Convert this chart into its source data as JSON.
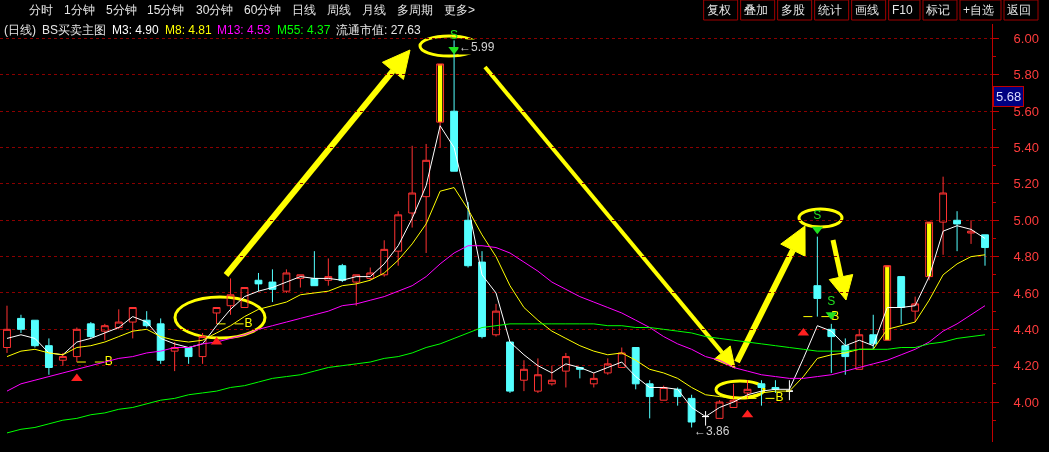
{
  "chart_data": [
    {
      "type": "other",
      "annotations": [
        "分时",
        "1分钟",
        "5分钟",
        "15分钟",
        "30分钟",
        "60分钟",
        "日线",
        "周线",
        "月线",
        "多周期",
        "更多>"
      ]
    },
    {
      "type": "other",
      "annotations": [
        "复权",
        "叠加",
        "多股",
        "统计",
        "画线",
        "F10",
        "标记",
        "+自选",
        "返回"
      ]
    },
    {
      "type": "candlestick",
      "title": "(日线)",
      "subtitle": "BS买卖主图",
      "categories": [
        null,
        null,
        null,
        null,
        null,
        null,
        null,
        null,
        null,
        null,
        null,
        null,
        null,
        null,
        null,
        null,
        null,
        null,
        null,
        null,
        null,
        null,
        null,
        null,
        null,
        null,
        null,
        null,
        null,
        null,
        null,
        null,
        null,
        null,
        null,
        null,
        null,
        null,
        null,
        null,
        null,
        null,
        null,
        null,
        null,
        null,
        null,
        null,
        null,
        null,
        null,
        null,
        null,
        null,
        null,
        null,
        null,
        null,
        null,
        null,
        null,
        null,
        null,
        null,
        null,
        null,
        null,
        null,
        null,
        null,
        null
      ],
      "ohlc": [
        [
          4.3,
          4.53,
          4.27,
          4.4
        ],
        [
          4.46,
          4.48,
          4.38,
          4.4
        ],
        [
          4.45,
          4.45,
          4.3,
          4.31
        ],
        [
          4.31,
          4.35,
          4.15,
          4.19
        ],
        [
          4.23,
          4.27,
          4.2,
          4.25
        ],
        [
          4.25,
          4.41,
          4.22,
          4.4
        ],
        [
          4.43,
          4.44,
          4.35,
          4.36
        ],
        [
          4.39,
          4.43,
          4.34,
          4.42
        ],
        [
          4.41,
          4.51,
          4.4,
          4.44
        ],
        [
          4.44,
          4.52,
          4.35,
          4.52
        ],
        [
          4.45,
          4.5,
          4.41,
          4.42
        ],
        [
          4.43,
          4.46,
          4.21,
          4.23
        ],
        [
          4.28,
          4.33,
          4.17,
          4.3
        ],
        [
          4.3,
          4.3,
          4.21,
          4.25
        ],
        [
          4.25,
          4.38,
          4.21,
          4.36
        ],
        [
          4.49,
          4.52,
          4.43,
          4.52
        ],
        [
          4.53,
          4.68,
          4.48,
          4.59
        ],
        [
          4.52,
          4.63,
          4.52,
          4.63
        ],
        [
          4.67,
          4.71,
          4.61,
          4.65
        ],
        [
          4.66,
          4.73,
          4.55,
          4.62
        ],
        [
          4.61,
          4.73,
          4.6,
          4.71
        ],
        [
          4.68,
          4.7,
          4.63,
          4.7
        ],
        [
          4.68,
          4.83,
          4.64,
          4.64
        ],
        [
          4.67,
          4.79,
          4.64,
          4.69
        ],
        [
          4.75,
          4.76,
          4.66,
          4.67
        ],
        [
          4.66,
          4.7,
          4.53,
          4.7
        ],
        [
          4.68,
          4.74,
          4.67,
          4.71
        ],
        [
          4.7,
          4.89,
          4.69,
          4.84
        ],
        [
          4.83,
          5.05,
          4.75,
          5.03
        ],
        [
          5.04,
          5.41,
          4.96,
          5.15
        ],
        [
          5.13,
          5.42,
          4.82,
          5.33
        ],
        [
          5.54,
          5.86,
          5.4,
          5.86
        ],
        [
          5.6,
          5.99,
          5.27,
          5.27
        ],
        [
          5.0,
          5.1,
          4.74,
          4.75
        ],
        [
          4.77,
          4.83,
          4.35,
          4.36
        ],
        [
          4.37,
          4.54,
          4.36,
          4.5
        ],
        [
          4.33,
          4.33,
          4.05,
          4.06
        ],
        [
          4.12,
          4.23,
          4.06,
          4.18
        ],
        [
          4.06,
          4.24,
          4.05,
          4.15
        ],
        [
          4.1,
          4.2,
          4.09,
          4.12
        ],
        [
          4.17,
          4.27,
          4.08,
          4.25
        ],
        [
          4.19,
          4.19,
          4.13,
          4.18
        ],
        [
          4.1,
          4.16,
          4.08,
          4.13
        ],
        [
          4.16,
          4.24,
          4.15,
          4.21
        ],
        [
          4.19,
          4.3,
          4.19,
          4.27
        ],
        [
          4.3,
          4.3,
          4.07,
          4.1
        ],
        [
          4.1,
          4.12,
          3.91,
          4.03
        ],
        [
          4.01,
          4.09,
          4.01,
          4.08
        ],
        [
          4.07,
          4.08,
          3.98,
          4.03
        ],
        [
          4.02,
          4.04,
          3.86,
          3.89
        ],
        [
          3.92,
          3.95,
          3.87,
          3.92
        ],
        [
          3.91,
          4.01,
          3.91,
          4.0
        ],
        [
          3.97,
          4.1,
          3.97,
          4.01
        ],
        [
          4.05,
          4.12,
          4.02,
          4.07
        ],
        [
          4.1,
          4.12,
          3.98,
          4.08
        ],
        [
          4.08,
          4.12,
          4.05,
          4.07
        ],
        [
          4.06,
          4.12,
          4.01,
          4.06
        ],
        null,
        [
          4.64,
          4.91,
          4.47,
          4.57
        ],
        [
          4.4,
          4.43,
          4.16,
          4.36
        ],
        [
          4.31,
          4.35,
          4.15,
          4.25
        ],
        [
          4.18,
          4.4,
          4.18,
          4.37
        ],
        [
          4.37,
          4.48,
          4.29,
          4.32
        ],
        [
          4.34,
          4.75,
          4.34,
          4.75
        ],
        [
          4.69,
          4.69,
          4.43,
          4.52
        ],
        [
          4.5,
          4.58,
          4.44,
          4.54
        ],
        [
          4.69,
          4.99,
          4.67,
          4.99
        ],
        [
          4.99,
          5.24,
          4.81,
          5.15
        ],
        [
          5.0,
          5.05,
          4.83,
          4.98
        ],
        [
          4.93,
          5.0,
          4.87,
          4.94
        ],
        [
          4.92,
          4.92,
          4.75,
          4.85
        ]
      ],
      "colors": [
        "#ff3232",
        "#54ffff",
        "#54ffff",
        "#54ffff",
        "#ff3232",
        "#ff3232",
        "#54ffff",
        "#ff3232",
        "#ff3232",
        "#ff3232",
        "#54ffff",
        "#54ffff",
        "#ff3232",
        "#54ffff",
        "#ff3232",
        "#ff3232",
        "#ff3232",
        "#ff3232",
        "#54ffff",
        "#54ffff",
        "#ff3232",
        "#ff3232",
        "#54ffff",
        "#ff3232",
        "#54ffff",
        "#ff3232",
        "#ff3232",
        "#ff3232",
        "#ff3232",
        "#ff3232",
        "#ff3232",
        "#ff3232",
        "#54ffff",
        "#54ffff",
        "#54ffff",
        "#ff3232",
        "#54ffff",
        "#ff3232",
        "#ff3232",
        "#ff3232",
        "#ff3232",
        "#54ffff",
        "#ff3232",
        "#ff3232",
        "#ff3232",
        "#54ffff",
        "#54ffff",
        "#ff3232",
        "#54ffff",
        "#54ffff",
        "#ffffff",
        "#ff3232",
        "#ff3232",
        "#ff3232",
        "#54ffff",
        "#54ffff",
        "#ffffff",
        null,
        "#54ffff",
        "#54ffff",
        "#54ffff",
        "#ff3232",
        "#54ffff",
        "#ff3232",
        "#54ffff",
        "#ff3232",
        "#ff3232",
        "#ff3232",
        "#54ffff",
        "#ff3232",
        "#54ffff"
      ],
      "series": [
        {
          "name": "M3: 4.90",
          "type": "line",
          "color": "#ffffff",
          "values": [
            4.35,
            4.37,
            4.35,
            4.27,
            4.26,
            4.33,
            4.35,
            4.38,
            4.41,
            4.47,
            4.44,
            4.35,
            4.32,
            4.3,
            4.32,
            4.42,
            4.51,
            4.58,
            4.61,
            4.63,
            4.66,
            4.69,
            4.68,
            4.68,
            4.67,
            4.69,
            4.69,
            4.76,
            4.86,
            5.01,
            5.19,
            5.52,
            5.4,
            5.08,
            4.7,
            4.6,
            4.33,
            4.26,
            4.2,
            4.16,
            4.21,
            4.19,
            4.16,
            4.19,
            4.22,
            4.14,
            4.08,
            4.08,
            4.07,
            3.97,
            3.92,
            3.97,
            4.0,
            4.04,
            4.06,
            4.07,
            4.07,
            4.24,
            4.42,
            4.39,
            4.31,
            4.34,
            4.31,
            4.52,
            4.52,
            4.53,
            4.69,
            4.94,
            4.97,
            4.95,
            4.9
          ]
        },
        {
          "name": "M8: 4.81",
          "type": "line",
          "color": "#ffff00",
          "values": [
            4.25,
            4.28,
            4.29,
            4.27,
            4.26,
            4.3,
            4.31,
            4.33,
            4.36,
            4.39,
            4.4,
            4.36,
            4.34,
            4.33,
            4.34,
            4.38,
            4.42,
            4.47,
            4.51,
            4.53,
            4.55,
            4.59,
            4.6,
            4.61,
            4.64,
            4.65,
            4.67,
            4.71,
            4.78,
            4.87,
            4.98,
            5.16,
            5.18,
            5.06,
            4.92,
            4.8,
            4.64,
            4.52,
            4.45,
            4.39,
            4.35,
            4.31,
            4.28,
            4.26,
            4.27,
            4.23,
            4.18,
            4.16,
            4.13,
            4.08,
            4.04,
            4.03,
            4.02,
            4.03,
            4.05,
            4.06,
            4.06,
            4.14,
            4.24,
            4.26,
            4.27,
            4.29,
            4.29,
            4.4,
            4.42,
            4.44,
            4.56,
            4.7,
            4.76,
            4.8,
            4.81
          ]
        },
        {
          "name": "M13: 4.53",
          "type": "line",
          "color": "#ff00ff",
          "values": [
            4.06,
            4.1,
            4.12,
            4.14,
            4.16,
            4.18,
            4.2,
            4.22,
            4.24,
            4.25,
            4.27,
            4.28,
            4.3,
            4.3,
            4.32,
            4.33,
            4.35,
            4.37,
            4.4,
            4.42,
            4.44,
            4.46,
            4.48,
            4.5,
            4.53,
            4.54,
            4.56,
            4.58,
            4.61,
            4.64,
            4.69,
            4.76,
            4.82,
            4.86,
            4.86,
            4.85,
            4.82,
            4.77,
            4.72,
            4.66,
            4.62,
            4.58,
            4.55,
            4.52,
            4.49,
            4.45,
            4.41,
            4.36,
            4.32,
            4.29,
            4.25,
            4.23,
            4.19,
            4.17,
            4.15,
            4.14,
            4.13,
            4.13,
            4.14,
            4.15,
            4.17,
            4.19,
            4.21,
            4.23,
            4.26,
            4.29,
            4.33,
            4.39,
            4.43,
            4.48,
            4.53
          ]
        },
        {
          "name": "M55: 4.37",
          "type": "line",
          "color": "#00ff00",
          "values": [
            3.83,
            3.85,
            3.86,
            3.88,
            3.9,
            3.91,
            3.93,
            3.94,
            3.96,
            3.97,
            3.99,
            4.01,
            4.02,
            4.04,
            4.05,
            4.06,
            4.08,
            4.09,
            4.11,
            4.13,
            4.14,
            4.15,
            4.17,
            4.19,
            4.2,
            4.21,
            4.22,
            4.24,
            4.25,
            4.27,
            4.3,
            4.32,
            4.35,
            4.38,
            4.41,
            4.42,
            4.43,
            4.43,
            4.43,
            4.43,
            4.43,
            4.43,
            4.43,
            4.42,
            4.42,
            4.41,
            4.41,
            4.4,
            4.39,
            4.38,
            4.36,
            4.35,
            4.34,
            4.33,
            4.32,
            4.31,
            4.3,
            4.29,
            4.28,
            4.28,
            4.28,
            4.29,
            4.29,
            4.29,
            4.3,
            4.3,
            4.32,
            4.33,
            4.35,
            4.36,
            4.37
          ]
        },
        {
          "type": "bar",
          "color": "#ffff00",
          "base": [
            null,
            null,
            null,
            null,
            null,
            null,
            null,
            null,
            null,
            null,
            null,
            null,
            null,
            null,
            null,
            null,
            null,
            null,
            null,
            null,
            null,
            null,
            null,
            null,
            null,
            null,
            null,
            null,
            null,
            null,
            null,
            5.54,
            null,
            null,
            null,
            null,
            null,
            null,
            null,
            null,
            null,
            null,
            null,
            null,
            null,
            null,
            null,
            null,
            null,
            null,
            null,
            null,
            null,
            null,
            null,
            null,
            null,
            null,
            null,
            null,
            null,
            null,
            null,
            4.34,
            null,
            null,
            4.69,
            null,
            null,
            null,
            null
          ],
          "values": [
            null,
            null,
            null,
            null,
            null,
            null,
            null,
            null,
            null,
            null,
            null,
            null,
            null,
            null,
            null,
            null,
            null,
            null,
            null,
            null,
            null,
            null,
            null,
            null,
            null,
            null,
            null,
            null,
            null,
            null,
            null,
            0.32,
            null,
            null,
            null,
            null,
            null,
            null,
            null,
            null,
            null,
            null,
            null,
            null,
            null,
            null,
            null,
            null,
            null,
            null,
            null,
            null,
            null,
            null,
            null,
            null,
            null,
            null,
            null,
            null,
            null,
            null,
            null,
            0.41,
            null,
            null,
            0.3,
            null,
            null,
            null,
            null
          ]
        },
        {
          "type": "scatter",
          "color": "#ff2020",
          "marker": "triangle",
          "values": [
            null,
            null,
            null,
            null,
            null,
            4.13,
            null,
            null,
            null,
            null,
            null,
            null,
            null,
            null,
            null,
            4.33,
            null,
            null,
            null,
            null,
            null,
            null,
            null,
            null,
            null,
            null,
            null,
            null,
            null,
            null,
            null,
            null,
            null,
            null,
            null,
            null,
            null,
            null,
            null,
            null,
            null,
            null,
            null,
            null,
            null,
            null,
            null,
            null,
            null,
            null,
            null,
            null,
            null,
            3.93,
            null,
            null,
            null,
            4.38,
            null,
            null,
            null,
            null,
            null,
            null,
            null,
            null,
            null,
            null,
            null,
            null,
            null
          ]
        },
        {
          "type": "line",
          "color": "#ffff00",
          "line_style": "dashed",
          "values": [
            null,
            null,
            null,
            null,
            null,
            4.22,
            4.22,
            4.22,
            null,
            null,
            null,
            null,
            null,
            null,
            null,
            4.43,
            4.43,
            4.43,
            null,
            null,
            null,
            null,
            null,
            null,
            null,
            null,
            null,
            null,
            null,
            null,
            null,
            null,
            null,
            null,
            null,
            null,
            null,
            null,
            null,
            null,
            null,
            null,
            null,
            null,
            null,
            null,
            null,
            null,
            null,
            null,
            null,
            null,
            null,
            4.02,
            4.02,
            4.02,
            null,
            4.47,
            4.47,
            4.47,
            null,
            null,
            null,
            null,
            null,
            null,
            null,
            null,
            null,
            null,
            null
          ],
          "value_labels": [
            null,
            null,
            null,
            null,
            null,
            null,
            null,
            "B",
            null,
            null,
            null,
            null,
            null,
            null,
            null,
            null,
            null,
            "B",
            null,
            null,
            null,
            null,
            null,
            null,
            null,
            null,
            null,
            null,
            null,
            null,
            null,
            null,
            null,
            null,
            null,
            null,
            null,
            null,
            null,
            null,
            null,
            null,
            null,
            null,
            null,
            null,
            null,
            null,
            null,
            null,
            null,
            null,
            null,
            null,
            null,
            "B",
            null,
            null,
            null,
            "B",
            null,
            null,
            null,
            null,
            null,
            null,
            null,
            null,
            null,
            null,
            null
          ]
        },
        {
          "type": "scatter",
          "color": "#20e020",
          "marker": "triangle",
          "values": [
            null,
            null,
            null,
            null,
            null,
            null,
            null,
            null,
            null,
            null,
            null,
            null,
            null,
            null,
            null,
            null,
            null,
            null,
            null,
            null,
            null,
            null,
            null,
            null,
            null,
            null,
            null,
            null,
            null,
            null,
            null,
            null,
            5.94,
            null,
            null,
            null,
            null,
            null,
            null,
            null,
            null,
            null,
            null,
            null,
            null,
            null,
            null,
            null,
            null,
            null,
            null,
            null,
            null,
            null,
            null,
            null,
            null,
            null,
            4.95,
            4.48,
            null,
            null,
            null,
            null,
            null,
            null,
            null,
            null,
            null,
            null,
            null
          ],
          "value_labels": [
            null,
            null,
            null,
            null,
            null,
            null,
            null,
            null,
            null,
            null,
            null,
            null,
            null,
            null,
            null,
            null,
            null,
            null,
            null,
            null,
            null,
            null,
            null,
            null,
            null,
            null,
            null,
            null,
            null,
            null,
            null,
            null,
            "S",
            null,
            null,
            null,
            null,
            null,
            null,
            null,
            null,
            null,
            null,
            null,
            null,
            null,
            null,
            null,
            null,
            null,
            null,
            null,
            null,
            null,
            null,
            null,
            null,
            null,
            "S",
            "S",
            null,
            null,
            null,
            null,
            null,
            null,
            null,
            null,
            null,
            null,
            null
          ]
        }
      ],
      "ylim": [
        3.78,
        6.08
      ],
      "yticks": [
        {
          "value": 3.9,
          "label": null
        },
        {
          "value": 4,
          "label": "4.00"
        },
        {
          "value": 4.1,
          "label": null
        },
        {
          "value": 4.2,
          "label": "4.20"
        },
        {
          "value": 4.3,
          "label": null
        },
        {
          "value": 4.4,
          "label": "4.40"
        },
        {
          "value": 4.5,
          "label": null
        },
        {
          "value": 4.6,
          "label": "4.60"
        },
        {
          "value": 4.7,
          "label": null
        },
        {
          "value": 4.8,
          "label": "4.80"
        },
        {
          "value": 4.9,
          "label": null
        },
        {
          "value": 5,
          "label": "5.00"
        },
        {
          "value": 5.1,
          "label": null
        },
        {
          "value": 5.2,
          "label": "5.20"
        },
        {
          "value": 5.3,
          "label": null
        },
        {
          "value": 5.4,
          "label": "5.40"
        },
        {
          "value": 5.5,
          "label": null
        },
        {
          "value": 5.6,
          "label": "5.60"
        },
        {
          "value": 5.7,
          "label": null
        },
        {
          "value": 5.8,
          "label": "5.80"
        },
        {
          "value": 5.9,
          "label": null
        },
        {
          "value": 6,
          "label": "6.00"
        }
      ],
      "grid": "y",
      "legend": "top left",
      "tick_labels": "y",
      "annotations": [
        "流通市值: 27.63",
        "←5.99",
        "←3.86",
        {
          "text": "5.68",
          "y": 5.68
        }
      ]
    }
  ]
}
